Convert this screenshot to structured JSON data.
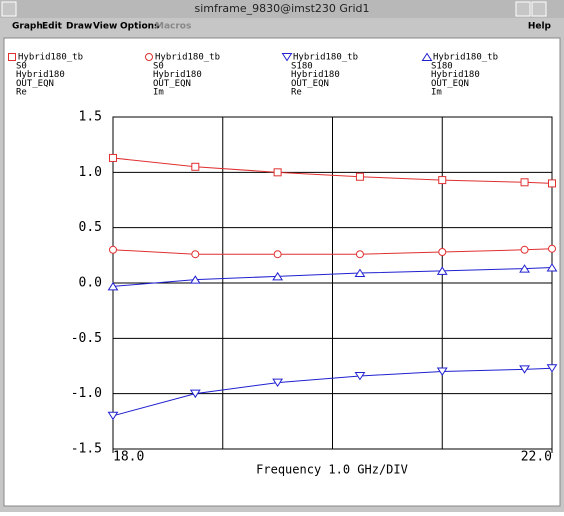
{
  "window": {
    "title": "simframe_9830@imst230 Grid1",
    "menu": [
      "Graph",
      "Edit",
      "Draw",
      "View",
      "Options",
      "Macros"
    ],
    "help": "Help"
  },
  "chart_data": {
    "type": "line",
    "x_label": "Frequency 1.0 GHz/DIV",
    "x": [
      18,
      18.75,
      19.5,
      20.25,
      21,
      21.75,
      22
    ],
    "xlim": [
      18,
      22
    ],
    "xticks": [
      {
        "value": 18,
        "label": "18.0"
      },
      {
        "value": 22,
        "label": "22.0"
      }
    ],
    "xgrid": [
      19,
      20,
      21
    ],
    "ylim": [
      -1.5,
      1.5
    ],
    "yticks": [
      {
        "value": 1.5,
        "label": "1.5"
      },
      {
        "value": 1,
        "label": "1.0"
      },
      {
        "value": 0.5,
        "label": "0.5"
      },
      {
        "value": 0,
        "label": "0.0"
      },
      {
        "value": -0.5,
        "label": "-0.5"
      },
      {
        "value": -1,
        "label": "-1.0"
      },
      {
        "value": -1.5,
        "label": "-1.5"
      }
    ],
    "grid": true,
    "series": [
      {
        "name": "Hybrid180_tb",
        "legend_lines": [
          "S0",
          "Hybrid180",
          "OUT_EQN",
          "Re"
        ],
        "marker": "square",
        "color": "#e03030",
        "values": [
          1.13,
          1.05,
          1.0,
          0.96,
          0.93,
          0.91,
          0.9
        ]
      },
      {
        "name": "Hybrid180_tb",
        "legend_lines": [
          "S0",
          "Hybrid180",
          "OUT_EQN",
          "Im"
        ],
        "marker": "circle",
        "color": "#e03030",
        "values": [
          0.3,
          0.26,
          0.26,
          0.26,
          0.28,
          0.3,
          0.31
        ]
      },
      {
        "name": "Hybrid180_tb",
        "legend_lines": [
          "S180",
          "Hybrid180",
          "OUT_EQN",
          "Re"
        ],
        "marker": "triangle-down",
        "color": "#2020d0",
        "values": [
          -1.2,
          -1.0,
          -0.9,
          -0.84,
          -0.8,
          -0.78,
          -0.77
        ]
      },
      {
        "name": "Hybrid180_tb",
        "legend_lines": [
          "S180",
          "Hybrid180",
          "OUT_EQN",
          "Im"
        ],
        "marker": "triangle-up",
        "color": "#2020d0",
        "values": [
          -0.03,
          0.03,
          0.06,
          0.09,
          0.11,
          0.13,
          0.14
        ]
      }
    ]
  }
}
